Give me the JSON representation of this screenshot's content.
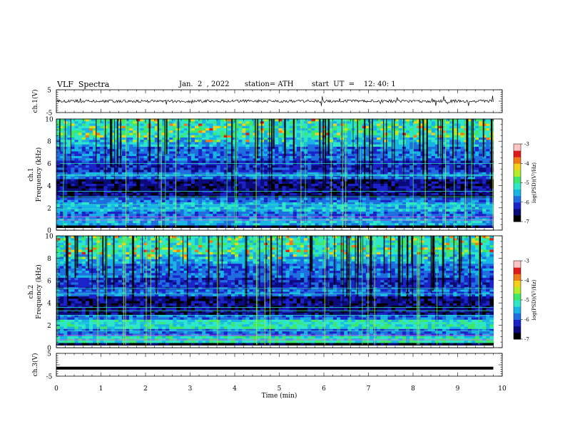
{
  "header": {
    "title": "VLF  Spectra",
    "date": "Jan.  2  , 2022",
    "station": "station= ATH",
    "start": "start  UT  =    12: 40: 1"
  },
  "colors": {
    "palette": [
      "#000000",
      "#0a0a7a",
      "#1a22c8",
      "#1e6ee0",
      "#18b4e6",
      "#2ee6c8",
      "#3ee86a",
      "#b4ec2a",
      "#f0d21c",
      "#f07a18",
      "#dc1c1c",
      "#ffc4c4",
      "#ffffff"
    ]
  },
  "chart_data": [
    {
      "type": "line",
      "ylabel": "ch.1(V)",
      "ylim": [
        -5,
        5
      ],
      "yticks": [
        "5",
        "-5"
      ],
      "xlim": [
        0,
        10
      ],
      "series": [
        {
          "x": [
            0,
            9.8
          ],
          "values": [
            0,
            0
          ],
          "description": "noisy trace near 0 V with brief spikes"
        }
      ]
    },
    {
      "type": "heatmap",
      "ylabel": "ch.1\nFrequency  (kHz)",
      "ylim": [
        0,
        10
      ],
      "yticks": [
        "0",
        "2",
        "4",
        "6",
        "8",
        "10"
      ],
      "xlim": [
        0,
        10
      ],
      "x_extent": [
        0,
        9.8
      ],
      "colorbar": {
        "label": "log(PSD)(V²/Hz)",
        "range": [
          -7,
          -3
        ],
        "ticks": [
          "-3",
          "-4",
          "-5",
          "-6",
          "-7"
        ]
      }
    },
    {
      "type": "heatmap",
      "ylabel": "ch.2\nFrequency  (kHz)",
      "ylim": [
        0,
        10
      ],
      "yticks": [
        "0",
        "2",
        "4",
        "6",
        "8",
        "10"
      ],
      "xlim": [
        0,
        10
      ],
      "x_extent": [
        0,
        9.8
      ],
      "colorbar": {
        "label": "log(PSD)(V²/Hz)",
        "range": [
          -7,
          -3
        ],
        "ticks": [
          "-3",
          "-4",
          "-5",
          "-6",
          "-7"
        ]
      }
    },
    {
      "type": "line",
      "ylabel": "ch.3(V)",
      "ylim": [
        -5,
        5
      ],
      "yticks": [
        "5",
        "-5"
      ],
      "xlim": [
        0,
        10
      ],
      "xlabel": "Time  (min)",
      "xticks": [
        "0",
        "1",
        "2",
        "3",
        "4",
        "5",
        "6",
        "7",
        "8",
        "9",
        "10"
      ],
      "series": [
        {
          "x": [
            0,
            9.8
          ],
          "values": [
            -1.5,
            -1.5
          ]
        }
      ]
    }
  ]
}
